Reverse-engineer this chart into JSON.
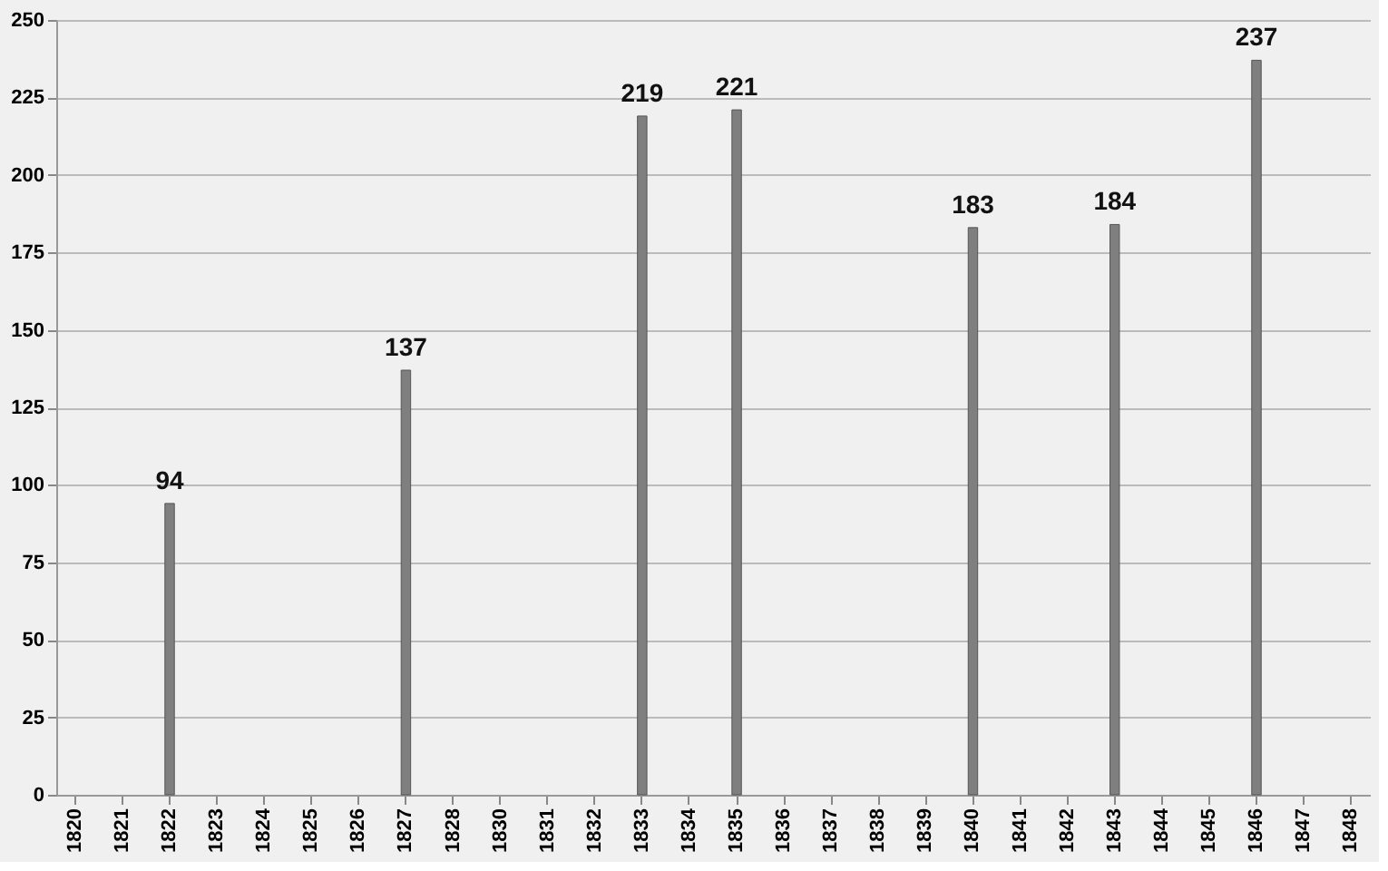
{
  "chart_data": {
    "type": "bar",
    "categories": [
      "1820",
      "1821",
      "1822",
      "1823",
      "1824",
      "1825",
      "1826",
      "1827",
      "1828",
      "1830",
      "1831",
      "1832",
      "1833",
      "1834",
      "1835",
      "1836",
      "1837",
      "1838",
      "1839",
      "1840",
      "1841",
      "1842",
      "1843",
      "1844",
      "1845",
      "1846",
      "1847",
      "1848"
    ],
    "values": [
      null,
      null,
      94,
      null,
      null,
      null,
      null,
      137,
      null,
      null,
      null,
      null,
      219,
      null,
      221,
      null,
      null,
      null,
      null,
      183,
      null,
      null,
      184,
      null,
      null,
      237,
      null,
      null
    ],
    "color": "#7f7f7f",
    "ylim": [
      0,
      250
    ],
    "yticks": [
      0,
      25,
      50,
      75,
      100,
      125,
      150,
      175,
      200,
      225,
      250
    ],
    "grid": "y",
    "data_labels": true
  }
}
